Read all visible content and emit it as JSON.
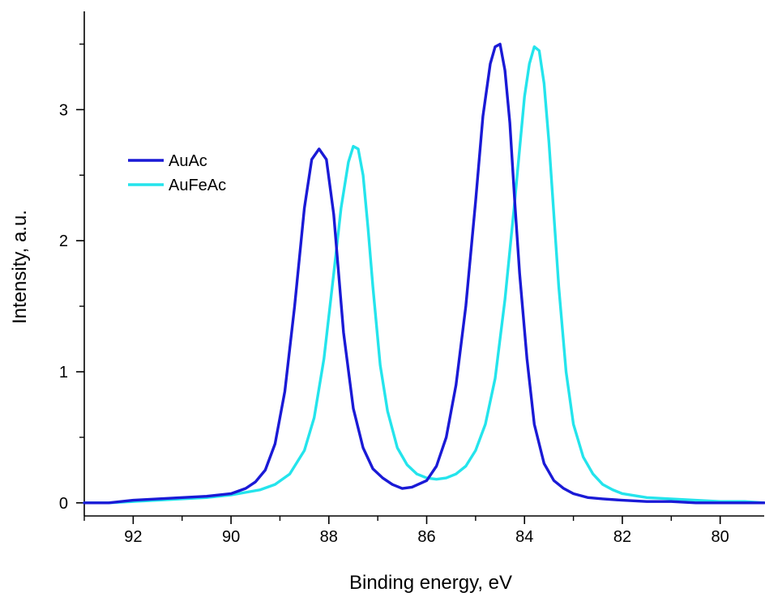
{
  "chart_data": {
    "type": "line",
    "title": "",
    "xlabel": "Binding energy, eV",
    "ylabel": "Intensity, a.u.",
    "xlim": [
      93.0,
      79.1
    ],
    "ylim": [
      -0.1,
      3.75
    ],
    "x_reversed": true,
    "grid": false,
    "legend_position": "upper-left",
    "x_ticks": [
      {
        "value": 92,
        "label": "92"
      },
      {
        "value": 90,
        "label": "90"
      },
      {
        "value": 88,
        "label": "88"
      },
      {
        "value": 86,
        "label": "86"
      },
      {
        "value": 84,
        "label": "84"
      },
      {
        "value": 82,
        "label": "82"
      },
      {
        "value": 80,
        "label": "80"
      }
    ],
    "y_ticks": [
      {
        "value": 0,
        "label": "0"
      },
      {
        "value": 1,
        "label": "1"
      },
      {
        "value": 2,
        "label": "2"
      },
      {
        "value": 3,
        "label": "3"
      }
    ],
    "series": [
      {
        "name": "AuAc",
        "color": "#1a1ad6",
        "x": [
          93.0,
          92.5,
          92.0,
          91.5,
          91.0,
          90.5,
          90.0,
          89.7,
          89.5,
          89.3,
          89.1,
          88.9,
          88.7,
          88.5,
          88.35,
          88.2,
          88.05,
          87.9,
          87.7,
          87.5,
          87.3,
          87.1,
          86.9,
          86.7,
          86.5,
          86.3,
          86.0,
          85.8,
          85.6,
          85.4,
          85.2,
          85.0,
          84.85,
          84.7,
          84.6,
          84.5,
          84.4,
          84.3,
          84.2,
          84.1,
          83.95,
          83.8,
          83.6,
          83.4,
          83.2,
          83.0,
          82.7,
          82.4,
          82.0,
          81.5,
          81.0,
          80.5,
          80.0,
          79.5,
          79.1
        ],
        "y": [
          0.0,
          0.0,
          0.02,
          0.03,
          0.04,
          0.05,
          0.07,
          0.11,
          0.16,
          0.25,
          0.45,
          0.85,
          1.5,
          2.25,
          2.62,
          2.7,
          2.62,
          2.2,
          1.3,
          0.72,
          0.42,
          0.26,
          0.19,
          0.14,
          0.11,
          0.12,
          0.17,
          0.28,
          0.5,
          0.9,
          1.5,
          2.3,
          2.95,
          3.35,
          3.48,
          3.5,
          3.3,
          2.9,
          2.3,
          1.75,
          1.1,
          0.6,
          0.3,
          0.17,
          0.11,
          0.07,
          0.04,
          0.03,
          0.02,
          0.01,
          0.01,
          0.0,
          0.0,
          0.0,
          0.0
        ]
      },
      {
        "name": "AuFeAc",
        "color": "#24e4ec",
        "x": [
          93.0,
          92.5,
          92.0,
          91.5,
          91.0,
          90.5,
          90.0,
          89.7,
          89.4,
          89.1,
          88.8,
          88.5,
          88.3,
          88.1,
          87.9,
          87.75,
          87.6,
          87.5,
          87.4,
          87.3,
          87.2,
          87.1,
          86.95,
          86.8,
          86.6,
          86.4,
          86.2,
          86.0,
          85.8,
          85.6,
          85.4,
          85.2,
          85.0,
          84.8,
          84.6,
          84.4,
          84.2,
          84.1,
          84.0,
          83.9,
          83.8,
          83.7,
          83.6,
          83.5,
          83.4,
          83.3,
          83.15,
          83.0,
          82.8,
          82.6,
          82.4,
          82.2,
          82.0,
          81.5,
          81.0,
          80.5,
          80.0,
          79.5,
          79.1
        ],
        "y": [
          0.0,
          0.0,
          0.01,
          0.02,
          0.03,
          0.04,
          0.06,
          0.08,
          0.1,
          0.14,
          0.22,
          0.4,
          0.65,
          1.1,
          1.75,
          2.25,
          2.6,
          2.72,
          2.7,
          2.5,
          2.1,
          1.65,
          1.05,
          0.7,
          0.42,
          0.29,
          0.22,
          0.19,
          0.18,
          0.19,
          0.22,
          0.28,
          0.4,
          0.6,
          0.95,
          1.55,
          2.3,
          2.7,
          3.1,
          3.35,
          3.48,
          3.45,
          3.2,
          2.75,
          2.2,
          1.65,
          1.0,
          0.6,
          0.35,
          0.22,
          0.14,
          0.1,
          0.07,
          0.04,
          0.03,
          0.02,
          0.01,
          0.01,
          0.0
        ]
      }
    ]
  }
}
